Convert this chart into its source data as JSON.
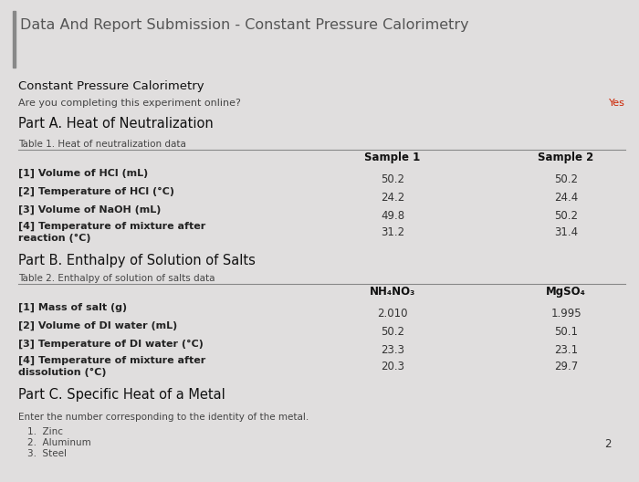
{
  "bg_color": "#e0dede",
  "title": "Data And Report Submission - Constant Pressure Calorimetry",
  "title_color": "#555555",
  "accent_bar_color": "#888888",
  "header_color": "#111111",
  "label_color": "#222222",
  "small_label_color": "#444444",
  "value_color": "#333333",
  "red_color": "#cc2200",
  "online_answer": "Yes",
  "section1_header": "Constant Pressure Calorimetry",
  "online_question": "Are you completing this experiment online?",
  "partA_header": "Part A. Heat of Neutralization",
  "tableA_label": "Table 1. Heat of neutralization data",
  "tableA_col1": "Sample 1",
  "tableA_col2": "Sample 2",
  "tableA_rows": [
    "[1] Volume of HCl (mL)",
    "[2] Temperature of HCl (°C)",
    "[3] Volume of NaOH (mL)",
    "[4] Temperature of mixture after\nreaction (°C)"
  ],
  "tableA_vals1": [
    "50.2",
    "24.2",
    "49.8",
    "31.2"
  ],
  "tableA_vals2": [
    "50.2",
    "24.4",
    "50.2",
    "31.4"
  ],
  "partB_header": "Part B. Enthalpy of Solution of Salts",
  "tableB_label": "Table 2. Enthalpy of solution of salts data",
  "tableB_col1": "NH₄NO₃",
  "tableB_col2": "MgSO₄",
  "tableB_rows": [
    "[1] Mass of salt (g)",
    "[2] Volume of DI water (mL)",
    "[3] Temperature of DI water (°C)",
    "[4] Temperature of mixture after\ndissolution (°C)"
  ],
  "tableB_vals1": [
    "2.010",
    "50.2",
    "23.3",
    "20.3"
  ],
  "tableB_vals2": [
    "1.995",
    "50.1",
    "23.1",
    "29.7"
  ],
  "partC_header": "Part C. Specific Heat of a Metal",
  "partC_question": "Enter the number corresponding to the identity of the metal.",
  "partC_list": [
    "1.  Zinc",
    "2.  Aluminum",
    "3.  Steel"
  ],
  "partC_answer": "2"
}
